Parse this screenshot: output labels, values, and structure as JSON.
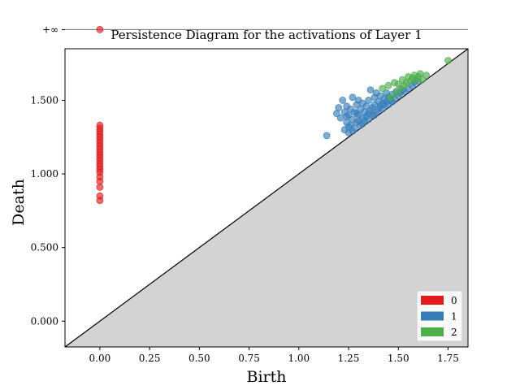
{
  "chart_data": {
    "type": "scatter",
    "title": "Persistence Diagram for the activations of Layer 1",
    "xlabel": "Birth",
    "ylabel": "Death",
    "xlim": [
      -0.175,
      1.85
    ],
    "ylim": [
      -0.175,
      1.85
    ],
    "infinity_value": 1.98,
    "infinity_label": "+∞",
    "x_ticks": [
      0.0,
      0.25,
      0.5,
      0.75,
      1.0,
      1.25,
      1.5,
      1.75
    ],
    "x_tick_labels": [
      "0.00",
      "0.25",
      "0.50",
      "0.75",
      "1.00",
      "1.25",
      "1.50",
      "1.75"
    ],
    "y_ticks": [
      0.0,
      0.5,
      1.0,
      1.5
    ],
    "y_tick_labels": [
      "0.000",
      "0.500",
      "1.000",
      "1.500"
    ],
    "legend_position": "bottom-right",
    "diagonal": true,
    "series": [
      {
        "name": "0",
        "color": "#e41a1c",
        "points": [
          [
            0,
            1.98
          ],
          [
            0,
            1.33
          ],
          [
            0,
            1.31
          ],
          [
            0,
            1.29
          ],
          [
            0,
            1.27
          ],
          [
            0,
            1.25
          ],
          [
            0,
            1.23
          ],
          [
            0,
            1.21
          ],
          [
            0,
            1.19
          ],
          [
            0,
            1.17
          ],
          [
            0,
            1.15
          ],
          [
            0,
            1.13
          ],
          [
            0,
            1.11
          ],
          [
            0,
            1.09
          ],
          [
            0,
            1.07
          ],
          [
            0,
            1.05
          ],
          [
            0,
            1.03
          ],
          [
            0,
            1.01
          ],
          [
            0,
            0.98
          ],
          [
            0,
            0.95
          ],
          [
            0,
            0.91
          ],
          [
            0,
            0.85
          ],
          [
            0,
            0.82
          ]
        ]
      },
      {
        "name": "1",
        "color": "#377eb8",
        "points": [
          [
            1.14,
            1.26
          ],
          [
            1.19,
            1.41
          ],
          [
            1.2,
            1.45
          ],
          [
            1.21,
            1.38
          ],
          [
            1.22,
            1.5
          ],
          [
            1.23,
            1.42
          ],
          [
            1.23,
            1.3
          ],
          [
            1.24,
            1.35
          ],
          [
            1.24,
            1.46
          ],
          [
            1.25,
            1.28
          ],
          [
            1.25,
            1.4
          ],
          [
            1.26,
            1.33
          ],
          [
            1.26,
            1.44
          ],
          [
            1.27,
            1.52
          ],
          [
            1.27,
            1.37
          ],
          [
            1.28,
            1.31
          ],
          [
            1.28,
            1.42
          ],
          [
            1.29,
            1.47
          ],
          [
            1.29,
            1.35
          ],
          [
            1.3,
            1.4
          ],
          [
            1.3,
            1.5
          ],
          [
            1.31,
            1.33
          ],
          [
            1.31,
            1.44
          ],
          [
            1.32,
            1.38
          ],
          [
            1.32,
            1.48
          ],
          [
            1.33,
            1.36
          ],
          [
            1.33,
            1.42
          ],
          [
            1.34,
            1.46
          ],
          [
            1.34,
            1.39
          ],
          [
            1.35,
            1.41
          ],
          [
            1.35,
            1.5
          ],
          [
            1.36,
            1.43
          ],
          [
            1.36,
            1.57
          ],
          [
            1.37,
            1.45
          ],
          [
            1.37,
            1.4
          ],
          [
            1.38,
            1.47
          ],
          [
            1.38,
            1.52
          ],
          [
            1.39,
            1.42
          ],
          [
            1.39,
            1.55
          ],
          [
            1.4,
            1.44
          ],
          [
            1.4,
            1.49
          ],
          [
            1.41,
            1.46
          ],
          [
            1.41,
            1.53
          ],
          [
            1.42,
            1.48
          ],
          [
            1.42,
            1.44
          ],
          [
            1.43,
            1.51
          ],
          [
            1.43,
            1.47
          ],
          [
            1.44,
            1.49
          ],
          [
            1.44,
            1.55
          ],
          [
            1.45,
            1.47
          ],
          [
            1.45,
            1.52
          ],
          [
            1.46,
            1.5
          ],
          [
            1.47,
            1.54
          ],
          [
            1.47,
            1.49
          ],
          [
            1.48,
            1.51
          ],
          [
            1.49,
            1.56
          ],
          [
            1.5,
            1.53
          ],
          [
            1.51,
            1.55
          ],
          [
            1.52,
            1.57
          ],
          [
            1.53,
            1.56
          ],
          [
            1.55,
            1.58
          ],
          [
            1.57,
            1.6
          ],
          [
            1.58,
            1.62
          ],
          [
            1.6,
            1.63
          ],
          [
            1.25,
            1.32
          ],
          [
            1.27,
            1.29
          ],
          [
            1.3,
            1.36
          ],
          [
            1.32,
            1.34
          ],
          [
            1.35,
            1.37
          ],
          [
            1.38,
            1.4
          ],
          [
            1.24,
            1.39
          ],
          [
            1.29,
            1.41
          ]
        ]
      },
      {
        "name": "2",
        "color": "#4daf4a",
        "points": [
          [
            1.42,
            1.58
          ],
          [
            1.45,
            1.6
          ],
          [
            1.46,
            1.52
          ],
          [
            1.48,
            1.62
          ],
          [
            1.49,
            1.55
          ],
          [
            1.5,
            1.61
          ],
          [
            1.51,
            1.58
          ],
          [
            1.52,
            1.64
          ],
          [
            1.53,
            1.6
          ],
          [
            1.54,
            1.62
          ],
          [
            1.55,
            1.66
          ],
          [
            1.56,
            1.63
          ],
          [
            1.57,
            1.65
          ],
          [
            1.58,
            1.67
          ],
          [
            1.59,
            1.64
          ],
          [
            1.6,
            1.66
          ],
          [
            1.61,
            1.68
          ],
          [
            1.62,
            1.64
          ],
          [
            1.64,
            1.67
          ],
          [
            1.75,
            1.77
          ]
        ]
      }
    ]
  }
}
